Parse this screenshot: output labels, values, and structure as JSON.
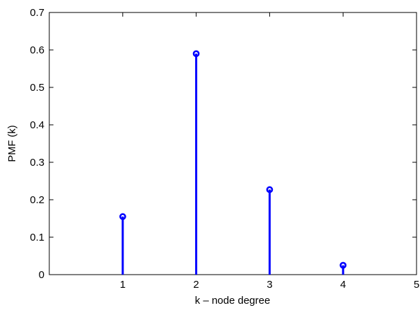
{
  "chart_data": {
    "type": "stem",
    "title": "",
    "xlabel": "k – node degree",
    "ylabel": "PMF (k)",
    "xlim": [
      0,
      5
    ],
    "ylim": [
      0,
      0.7
    ],
    "xticks": [
      1,
      2,
      3,
      4,
      5
    ],
    "xtick_labels": [
      "1",
      "2",
      "3",
      "4",
      "5"
    ],
    "yticks": [
      0,
      0.1,
      0.2,
      0.3,
      0.4,
      0.5,
      0.6,
      0.7
    ],
    "ytick_labels": [
      "0",
      "0.1",
      "0.2",
      "0.3",
      "0.4",
      "0.5",
      "0.6",
      "0.7"
    ],
    "x": [
      1,
      2,
      3,
      4
    ],
    "values": [
      0.155,
      0.59,
      0.227,
      0.025
    ],
    "marker": "circle",
    "color": "#0000ff",
    "grid": false,
    "legend": "none"
  }
}
